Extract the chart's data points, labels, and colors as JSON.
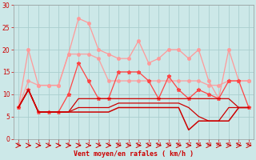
{
  "x": [
    0,
    1,
    2,
    3,
    4,
    5,
    6,
    7,
    8,
    9,
    10,
    11,
    12,
    13,
    14,
    15,
    16,
    17,
    18,
    19,
    20,
    21,
    22,
    23
  ],
  "gust_light": [
    7,
    20,
    12,
    12,
    12,
    19,
    27,
    26,
    20,
    19,
    18,
    18,
    22,
    17,
    18,
    20,
    20,
    18,
    20,
    13,
    9,
    20,
    13,
    13
  ],
  "avg_light": [
    7,
    13,
    12,
    12,
    12,
    19,
    19,
    19,
    18,
    13,
    13,
    13,
    13,
    13,
    13,
    13,
    13,
    13,
    13,
    12,
    12,
    13,
    13,
    13
  ],
  "red_gust": [
    7,
    11,
    6,
    6,
    6,
    10,
    17,
    13,
    9,
    9,
    15,
    15,
    15,
    13,
    9,
    14,
    11,
    9,
    11,
    10,
    9,
    13,
    13,
    7
  ],
  "red_line1": [
    7,
    11,
    6,
    6,
    6,
    6,
    9,
    9,
    9,
    9,
    9,
    9,
    9,
    9,
    9,
    9,
    9,
    9,
    9,
    9,
    9,
    9,
    7,
    7
  ],
  "red_line2": [
    7,
    11,
    6,
    6,
    6,
    6,
    7,
    7,
    7,
    7,
    8,
    8,
    8,
    8,
    8,
    8,
    8,
    7,
    5,
    4,
    4,
    7,
    7,
    7
  ],
  "red_line3": [
    7,
    11,
    6,
    6,
    6,
    6,
    6,
    6,
    6,
    6,
    7,
    7,
    7,
    7,
    7,
    7,
    7,
    2,
    4,
    4,
    4,
    4,
    7,
    7
  ],
  "bg_color": "#cce8e8",
  "grid_color": "#aacece",
  "color_light_pink": "#ff9999",
  "color_mid_red": "#ff4444",
  "color_dark_red": "#cc0000",
  "xlabel": "Vent moyen/en rafales ( km/h )",
  "ylim": [
    0,
    30
  ],
  "yticks": [
    0,
    5,
    10,
    15,
    20,
    25,
    30
  ],
  "xticks": [
    0,
    1,
    2,
    3,
    4,
    5,
    6,
    7,
    8,
    9,
    10,
    11,
    12,
    13,
    14,
    15,
    16,
    17,
    18,
    19,
    20,
    21,
    22,
    23
  ]
}
